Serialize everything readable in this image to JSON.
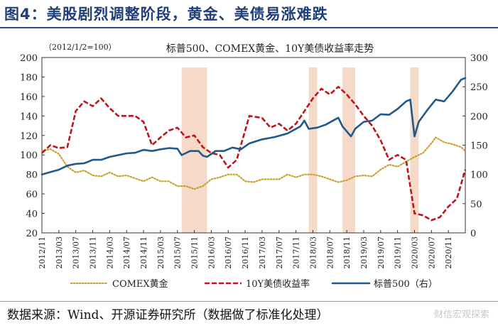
{
  "figure_title": "图4：美股剧烈调整阶段，黄金、美债易涨难跌",
  "source_note": "数据来源：Wind、开源证券研究所（数据做了标准化处理）",
  "watermark": "财信宏观探索",
  "colors": {
    "title": "#1f3f7a",
    "sp500": "#1f5a8a",
    "treasury": "#c0141c",
    "gold": "#c8a22e",
    "shade": "#f5d3bf"
  },
  "chart_data": {
    "type": "line",
    "title": "标普500、COMEX黄金、10Y美债收益率走势",
    "base_note": "（2012/1/2=100）",
    "x_ticks": [
      "2012/11",
      "2013/03",
      "2013/07",
      "2013/11",
      "2014/03",
      "2014/07",
      "2014/11",
      "2015/03",
      "2015/07",
      "2015/11",
      "2016/03",
      "2016/07",
      "2016/11",
      "2017/03",
      "2017/07",
      "2017/11",
      "2018/03",
      "2018/07",
      "2018/11",
      "2019/03",
      "2019/07",
      "2019/11",
      "2020/03",
      "2020/07",
      "2020/11"
    ],
    "x_range": [
      "2012/11",
      "2021/03"
    ],
    "y_left": {
      "min": 20,
      "max": 200,
      "ticks": [
        20,
        40,
        60,
        80,
        100,
        120,
        140,
        160,
        180,
        200
      ]
    },
    "y_right": {
      "min": 0,
      "max": 300,
      "ticks": [
        0,
        50,
        100,
        150,
        200,
        250,
        300
      ]
    },
    "shaded_periods": [
      {
        "start": "2015/08",
        "end": "2016/02"
      },
      {
        "start": "2018/02",
        "end": "2018/04"
      },
      {
        "start": "2018/10",
        "end": "2019/01"
      },
      {
        "start": "2020/02",
        "end": "2020/04"
      }
    ],
    "series": [
      {
        "name": "COMEX黄金",
        "axis": "left",
        "style": "dotted",
        "points": [
          [
            "2012/11",
            104
          ],
          [
            "2013/01",
            106
          ],
          [
            "2013/03",
            101
          ],
          [
            "2013/05",
            88
          ],
          [
            "2013/07",
            82
          ],
          [
            "2013/09",
            84
          ],
          [
            "2013/11",
            79
          ],
          [
            "2014/01",
            78
          ],
          [
            "2014/03",
            82
          ],
          [
            "2014/05",
            78
          ],
          [
            "2014/07",
            79
          ],
          [
            "2014/09",
            76
          ],
          [
            "2014/11",
            73
          ],
          [
            "2015/01",
            77
          ],
          [
            "2015/03",
            73
          ],
          [
            "2015/05",
            73
          ],
          [
            "2015/07",
            68
          ],
          [
            "2015/09",
            68
          ],
          [
            "2015/11",
            65
          ],
          [
            "2016/01",
            68
          ],
          [
            "2016/03",
            75
          ],
          [
            "2016/05",
            77
          ],
          [
            "2016/07",
            80
          ],
          [
            "2016/09",
            80
          ],
          [
            "2016/11",
            73
          ],
          [
            "2017/01",
            72
          ],
          [
            "2017/03",
            75
          ],
          [
            "2017/05",
            75
          ],
          [
            "2017/07",
            75
          ],
          [
            "2017/09",
            80
          ],
          [
            "2017/11",
            77
          ],
          [
            "2018/01",
            80
          ],
          [
            "2018/03",
            80
          ],
          [
            "2018/05",
            78
          ],
          [
            "2018/07",
            75
          ],
          [
            "2018/09",
            72
          ],
          [
            "2018/11",
            74
          ],
          [
            "2019/01",
            78
          ],
          [
            "2019/03",
            79
          ],
          [
            "2019/05",
            78
          ],
          [
            "2019/07",
            85
          ],
          [
            "2019/09",
            90
          ],
          [
            "2019/11",
            88
          ],
          [
            "2020/01",
            93
          ],
          [
            "2020/03",
            98
          ],
          [
            "2020/05",
            102
          ],
          [
            "2020/07",
            112
          ],
          [
            "2020/08",
            118
          ],
          [
            "2020/10",
            113
          ],
          [
            "2020/12",
            111
          ],
          [
            "2021/02",
            108
          ],
          [
            "2021/03",
            104
          ]
        ]
      },
      {
        "name": "10Y美债收益率",
        "axis": "left",
        "style": "dashed",
        "points": [
          [
            "2012/11",
            102
          ],
          [
            "2013/01",
            110
          ],
          [
            "2013/03",
            107
          ],
          [
            "2013/05",
            108
          ],
          [
            "2013/07",
            145
          ],
          [
            "2013/09",
            155
          ],
          [
            "2013/11",
            150
          ],
          [
            "2014/01",
            158
          ],
          [
            "2014/03",
            148
          ],
          [
            "2014/05",
            140
          ],
          [
            "2014/07",
            140
          ],
          [
            "2014/09",
            140
          ],
          [
            "2014/11",
            134
          ],
          [
            "2015/01",
            110
          ],
          [
            "2015/03",
            118
          ],
          [
            "2015/05",
            125
          ],
          [
            "2015/07",
            128
          ],
          [
            "2015/09",
            118
          ],
          [
            "2015/11",
            120
          ],
          [
            "2016/01",
            108
          ],
          [
            "2016/03",
            102
          ],
          [
            "2016/05",
            100
          ],
          [
            "2016/07",
            87
          ],
          [
            "2016/09",
            95
          ],
          [
            "2016/11",
            125
          ],
          [
            "2016/12",
            140
          ],
          [
            "2017/03",
            138
          ],
          [
            "2017/05",
            128
          ],
          [
            "2017/07",
            132
          ],
          [
            "2017/09",
            125
          ],
          [
            "2017/11",
            132
          ],
          [
            "2018/01",
            145
          ],
          [
            "2018/03",
            158
          ],
          [
            "2018/05",
            168
          ],
          [
            "2018/07",
            162
          ],
          [
            "2018/09",
            170
          ],
          [
            "2018/11",
            162
          ],
          [
            "2019/01",
            152
          ],
          [
            "2019/03",
            140
          ],
          [
            "2019/05",
            130
          ],
          [
            "2019/07",
            115
          ],
          [
            "2019/09",
            95
          ],
          [
            "2019/11",
            100
          ],
          [
            "2020/01",
            95
          ],
          [
            "2020/03",
            40
          ],
          [
            "2020/05",
            38
          ],
          [
            "2020/07",
            33
          ],
          [
            "2020/09",
            36
          ],
          [
            "2020/11",
            47
          ],
          [
            "2021/01",
            55
          ],
          [
            "2021/03",
            85
          ]
        ]
      },
      {
        "name": "标普500（右）",
        "axis": "right",
        "style": "solid",
        "points": [
          [
            "2012/11",
            100
          ],
          [
            "2013/01",
            104
          ],
          [
            "2013/03",
            108
          ],
          [
            "2013/05",
            115
          ],
          [
            "2013/07",
            118
          ],
          [
            "2013/09",
            119
          ],
          [
            "2013/11",
            125
          ],
          [
            "2014/01",
            125
          ],
          [
            "2014/03",
            130
          ],
          [
            "2014/05",
            133
          ],
          [
            "2014/07",
            136
          ],
          [
            "2014/09",
            137
          ],
          [
            "2014/11",
            142
          ],
          [
            "2015/01",
            140
          ],
          [
            "2015/03",
            143
          ],
          [
            "2015/05",
            145
          ],
          [
            "2015/07",
            144
          ],
          [
            "2015/08",
            133
          ],
          [
            "2015/10",
            140
          ],
          [
            "2015/12",
            140
          ],
          [
            "2016/01",
            132
          ],
          [
            "2016/02",
            130
          ],
          [
            "2016/04",
            140
          ],
          [
            "2016/06",
            140
          ],
          [
            "2016/08",
            146
          ],
          [
            "2016/10",
            143
          ],
          [
            "2016/12",
            153
          ],
          [
            "2017/03",
            160
          ],
          [
            "2017/06",
            164
          ],
          [
            "2017/09",
            170
          ],
          [
            "2017/12",
            182
          ],
          [
            "2018/01",
            192
          ],
          [
            "2018/02",
            178
          ],
          [
            "2018/04",
            180
          ],
          [
            "2018/06",
            185
          ],
          [
            "2018/09",
            197
          ],
          [
            "2018/10",
            182
          ],
          [
            "2018/12",
            165
          ],
          [
            "2019/01",
            178
          ],
          [
            "2019/03",
            190
          ],
          [
            "2019/05",
            192
          ],
          [
            "2019/07",
            203
          ],
          [
            "2019/09",
            202
          ],
          [
            "2019/11",
            212
          ],
          [
            "2020/01",
            225
          ],
          [
            "2020/02",
            228
          ],
          [
            "2020/03",
            165
          ],
          [
            "2020/04",
            190
          ],
          [
            "2020/06",
            210
          ],
          [
            "2020/08",
            228
          ],
          [
            "2020/10",
            225
          ],
          [
            "2020/12",
            242
          ],
          [
            "2021/02",
            262
          ],
          [
            "2021/03",
            265
          ]
        ]
      }
    ],
    "legend": {
      "placement": "bottom",
      "entries": [
        "COMEX黄金",
        "10Y美债收益率",
        "标普500（右）"
      ]
    },
    "grid": false
  }
}
